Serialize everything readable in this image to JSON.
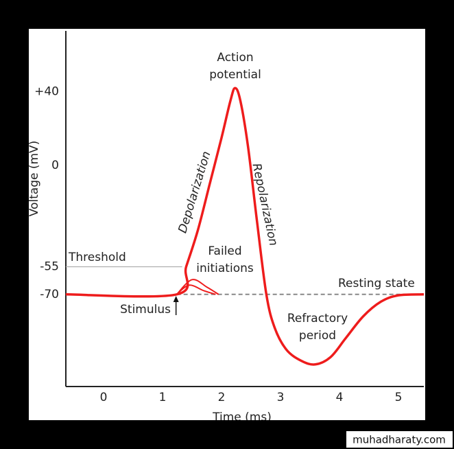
{
  "chart_data": {
    "type": "line",
    "xlabel": "Time (ms)",
    "ylabel": "Voltage (mV)",
    "xlim": [
      -0.64,
      5.43
    ],
    "ylim": [
      -120,
      73
    ],
    "xticks": [
      0,
      1,
      2,
      3,
      4,
      5
    ],
    "yticks": [
      {
        "value": 40,
        "label": "+40"
      },
      0,
      -55,
      -70
    ],
    "stimulus_x": 1.24,
    "series": [
      {
        "color": "#ee1c1c",
        "x": [
          -0.64,
          1.24,
          1.4,
          1.6,
          1.8,
          2.0,
          2.15,
          2.23,
          2.32,
          2.45,
          2.6,
          2.76,
          2.9,
          3.1,
          3.35,
          3.59,
          3.85,
          4.1,
          4.4,
          4.7,
          5.0,
          5.43
        ],
        "values": [
          -70,
          -70,
          -55,
          -35,
          -10,
          15,
          35,
          42,
          35,
          10,
          -30,
          -70,
          -88,
          -100,
          -106,
          -108,
          -104,
          -94,
          -82,
          -74,
          -70.5,
          -70
        ]
      },
      {
        "color": "#ee1c1c",
        "x": [
          1.24,
          1.5,
          1.75,
          1.95
        ],
        "values": [
          -70,
          -62,
          -66,
          -70
        ]
      },
      {
        "color": "#ee1c1c",
        "x": [
          1.24,
          1.45,
          1.7,
          1.9
        ],
        "values": [
          -70,
          -65,
          -68,
          -70
        ]
      }
    ],
    "annotations": [
      [
        "Action",
        "potential"
      ],
      [
        "Depolarization"
      ],
      [
        "Repolarization"
      ],
      [
        "Threshold"
      ],
      [
        "Failed",
        "initiations"
      ],
      [
        "Resting state"
      ],
      [
        "Stimulus"
      ],
      [
        "Refractory",
        "period"
      ]
    ]
  },
  "watermark": "muhadharaty.com"
}
